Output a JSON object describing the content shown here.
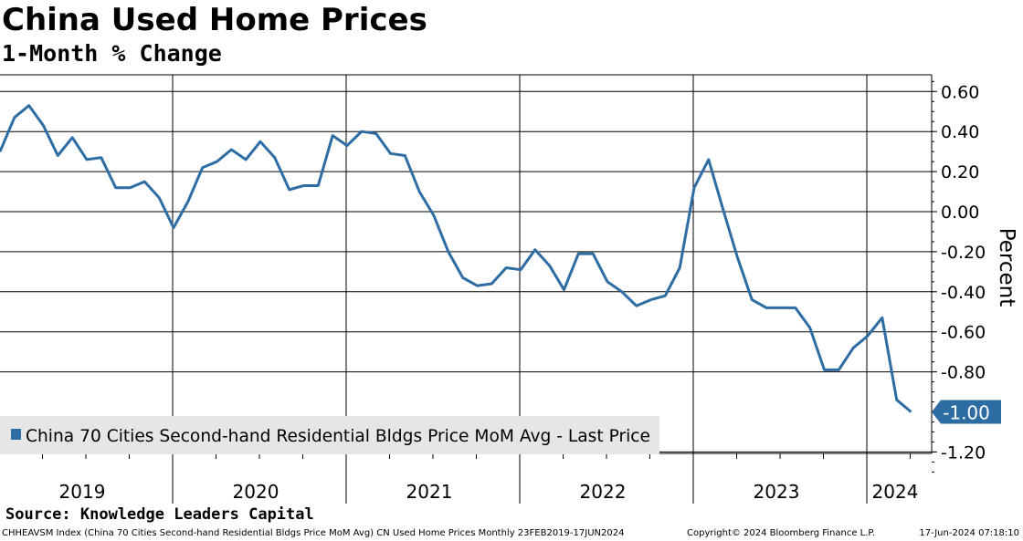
{
  "header": {
    "title": "China Used Home Prices",
    "subtitle": "1-Month % Change"
  },
  "source": "Source: Knowledge Leaders Capital",
  "footer": {
    "description": "CHHEAVSM Index (China 70 Cities  Second-hand Residential Bldgs Price MoM Avg) CN Used Home Prices  Monthly 23FEB2019-17JUN2024",
    "copyright": "Copyright© 2024 Bloomberg Finance L.P.",
    "timestamp": "17-Jun-2024 07:18:10"
  },
  "colors": {
    "series": "#2e6ca4",
    "grid": "#000000",
    "legend_bg": "#e6e6e6"
  },
  "chart_data": {
    "type": "line",
    "title": "China Used Home Prices",
    "subtitle": "1-Month % Change",
    "ylabel": "Percent",
    "xlabel": "",
    "ylim": [
      -1.3,
      0.68
    ],
    "y_ticks": [
      "0.60",
      "0.40",
      "0.20",
      "0.00",
      "-0.20",
      "-0.40",
      "-0.60",
      "-0.80",
      "-1.20"
    ],
    "y_tick_values": [
      0.6,
      0.4,
      0.2,
      0.0,
      -0.2,
      -0.4,
      -0.6,
      -0.8,
      -1.2
    ],
    "x_start": "2019-01",
    "x_labels": [
      "2019",
      "2020",
      "2021",
      "2022",
      "2023",
      "2024"
    ],
    "last_value_label": "-1.00",
    "last_value": -1.0,
    "legend": "China 70 Cities Second-hand Residential Bldgs Price MoM Avg - Last Price",
    "legend_position": "bottom-left",
    "series": [
      {
        "name": "China 70 Cities Second-hand Residential Bldgs Price MoM Avg - Last Price",
        "values": [
          0.3,
          0.47,
          0.53,
          0.43,
          0.28,
          0.37,
          0.26,
          0.27,
          0.12,
          0.12,
          0.15,
          0.07,
          -0.08,
          0.05,
          0.22,
          0.25,
          0.31,
          0.26,
          0.35,
          0.27,
          0.11,
          0.13,
          0.13,
          0.38,
          0.33,
          0.4,
          0.39,
          0.29,
          0.28,
          0.1,
          -0.02,
          -0.2,
          -0.33,
          -0.37,
          -0.36,
          -0.28,
          -0.29,
          -0.19,
          -0.27,
          -0.39,
          -0.21,
          -0.21,
          -0.35,
          -0.4,
          -0.47,
          -0.44,
          -0.42,
          -0.28,
          0.12,
          0.26,
          0.01,
          -0.23,
          -0.44,
          -0.48,
          -0.48,
          -0.48,
          -0.58,
          -0.79,
          -0.79,
          -0.68,
          -0.62,
          -0.53,
          -0.94,
          -1.0
        ]
      }
    ]
  }
}
